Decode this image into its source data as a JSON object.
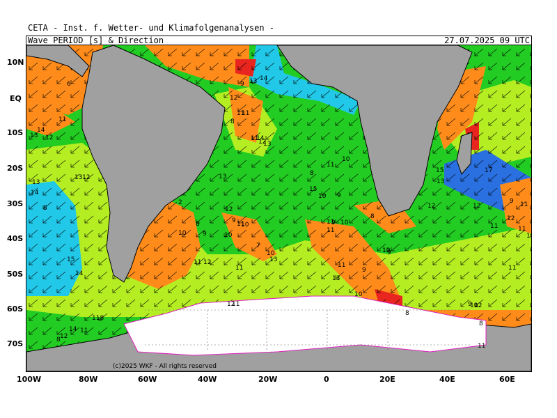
{
  "header": {
    "institution": "CETA - Inst. f. Wetter- und Klimafolgenanalysen -",
    "product": "Wave PERIOD [s] & Direction",
    "valid_time": "27.07.2025 09 UTC"
  },
  "axes": {
    "lat_labels": [
      "10N",
      "EQ",
      "10S",
      "20S",
      "30S",
      "40S",
      "50S",
      "60S",
      "70S"
    ],
    "lon_labels": [
      "100W",
      "80W",
      "60W",
      "40W",
      "20W",
      "0",
      "20E",
      "40E",
      "60E"
    ]
  },
  "copyright": "(c)2025 WKF - All rights reserved",
  "colors": {
    "ocean_green": "#22cc22",
    "ocean_yellowgreen": "#b4ee22",
    "ocean_orange": "#ff8c1a",
    "ocean_red": "#e8251e",
    "ocean_cyan": "#22c8e8",
    "ocean_blue": "#2a70e0",
    "land": "#a0a0a0",
    "ice": "#ffffff",
    "magenta": "#e020c0"
  },
  "period_labels": [
    "6",
    "9",
    "13",
    "14",
    "12",
    "11",
    "11",
    "8",
    "14",
    "11",
    "12",
    "13",
    "13",
    "14",
    "12",
    "11",
    "13",
    "12",
    "14",
    "13",
    "11",
    "10",
    "8",
    "15",
    "10",
    "9",
    "8",
    "13",
    "12",
    "2",
    "9",
    "11",
    "10",
    "8",
    "9",
    "10",
    "10",
    "11",
    "12",
    "7",
    "10",
    "13",
    "15",
    "14",
    "11",
    "11",
    "9",
    "10",
    "11",
    "10",
    "13",
    "9",
    "12",
    "9",
    "10",
    "8",
    "11",
    "11",
    "8",
    "11",
    "12",
    "11",
    "15",
    "13",
    "17",
    "12",
    "12",
    "11",
    "12",
    "11",
    "1",
    "11",
    "12",
    "8",
    "9",
    "10",
    "12",
    "11",
    "9",
    "8",
    "118",
    "14",
    "11",
    "1",
    "14"
  ]
}
